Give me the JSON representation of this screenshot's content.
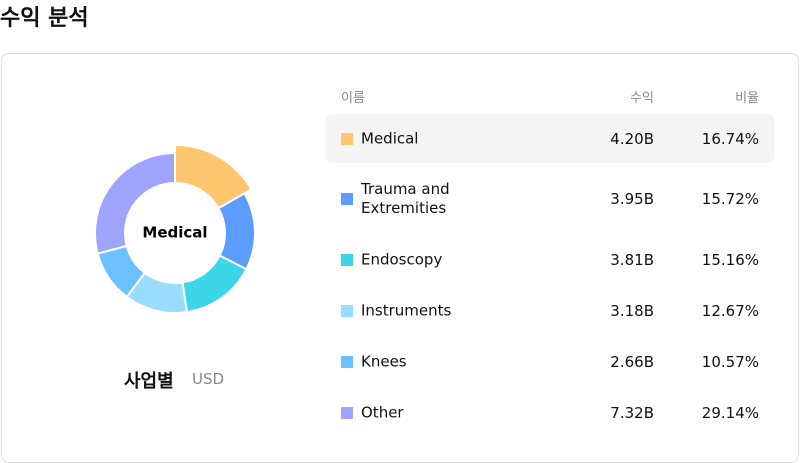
{
  "header": {
    "title": "수익 분석"
  },
  "chart_data": {
    "type": "donut",
    "center_label": "Medical",
    "title": "사업별",
    "subtitle": "USD",
    "columns": [
      "이름",
      "수익",
      "비율"
    ],
    "categories": [
      "Medical",
      "Trauma and Extremities",
      "Endoscopy",
      "Instruments",
      "Knees",
      "Other"
    ],
    "colors": [
      "#ffc670",
      "#5b9cff",
      "#3dd5e8",
      "#98dcff",
      "#6ec1ff",
      "#9fa4ff"
    ],
    "revenue": [
      "4.20B",
      "3.95B",
      "3.81B",
      "3.18B",
      "2.66B",
      "7.32B"
    ],
    "values": [
      16.74,
      15.72,
      15.16,
      12.67,
      10.57,
      29.14
    ],
    "value_labels": [
      "16.74%",
      "15.72%",
      "15.16%",
      "12.67%",
      "10.57%",
      "29.14%"
    ],
    "highlighted": 0
  }
}
